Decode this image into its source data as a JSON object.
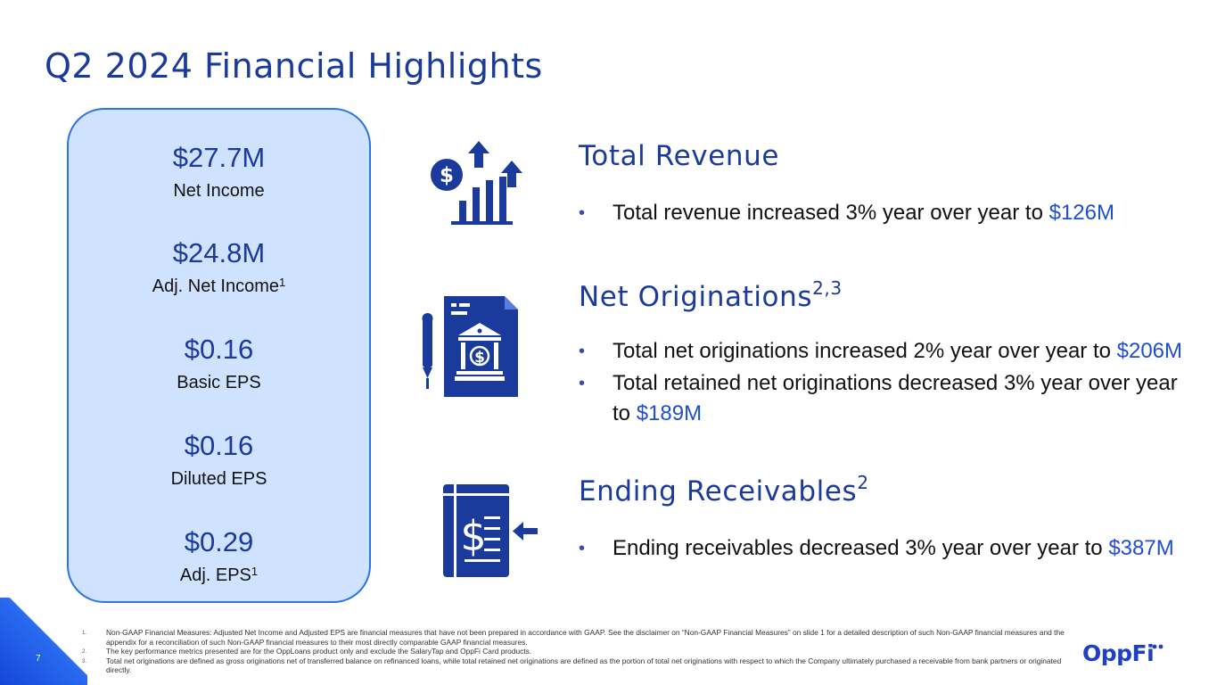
{
  "slide": {
    "title": "Q2 2024 Financial Highlights",
    "page_number": "7"
  },
  "metrics": [
    {
      "value": "$27.7M",
      "label": "Net Income",
      "sup": ""
    },
    {
      "value": "$24.8M",
      "label": "Adj. Net Income",
      "sup": "1"
    },
    {
      "value": "$0.16",
      "label": "Basic EPS",
      "sup": ""
    },
    {
      "value": "$0.16",
      "label": "Diluted EPS",
      "sup": ""
    },
    {
      "value": "$0.29",
      "label": "Adj. EPS",
      "sup": "1"
    }
  ],
  "sections": {
    "revenue": {
      "heading": "Total Revenue",
      "sup": "",
      "icon": "revenue-growth-icon",
      "bullets": [
        {
          "text": "Total revenue increased 3% year over year to ",
          "highlight": "$126M"
        }
      ]
    },
    "originations": {
      "heading": "Net Originations",
      "sup": "2,3",
      "icon": "bank-document-icon",
      "bullets": [
        {
          "text": "Total net originations increased 2% year over year to ",
          "highlight": "$206M"
        },
        {
          "text": "Total retained net originations decreased 3% year over year to ",
          "highlight": "$189M"
        }
      ]
    },
    "receivables": {
      "heading": "Ending Receivables",
      "sup": "2",
      "icon": "receivable-invoice-icon",
      "bullets": [
        {
          "text": "Ending receivables decreased 3% year over year to ",
          "highlight": "$387M"
        }
      ]
    }
  },
  "footnotes": [
    {
      "num": "1.",
      "text": "Non-GAAP Financial Measures: Adjusted Net Income and Adjusted EPS are financial measures that have not been prepared in accordance with GAAP. See the disclaimer on “Non-GAAP Financial Measures” on slide 1 for a detailed description of such Non-GAAP financial measures and the appendix for a reconciliation of such Non-GAAP financial measures to their most directly comparable GAAP financial measures."
    },
    {
      "num": "2.",
      "text": "The key performance metrics presented are for the OppLoans product only and exclude the SalaryTap and OppFi Card products."
    },
    {
      "num": "3.",
      "text": "Total net originations are defined as gross originations net of transferred balance on refinanced loans, while total retained net originations are defined as the portion of total net originations with respect to which the Company ultimately purchased a receivable from bank partners or originated directly."
    }
  ],
  "brand": {
    "logo_text": "OppFi",
    "primary_color": "#1a3a9c",
    "accent_color": "#2b74e4",
    "panel_color": "#cfe2ff"
  }
}
